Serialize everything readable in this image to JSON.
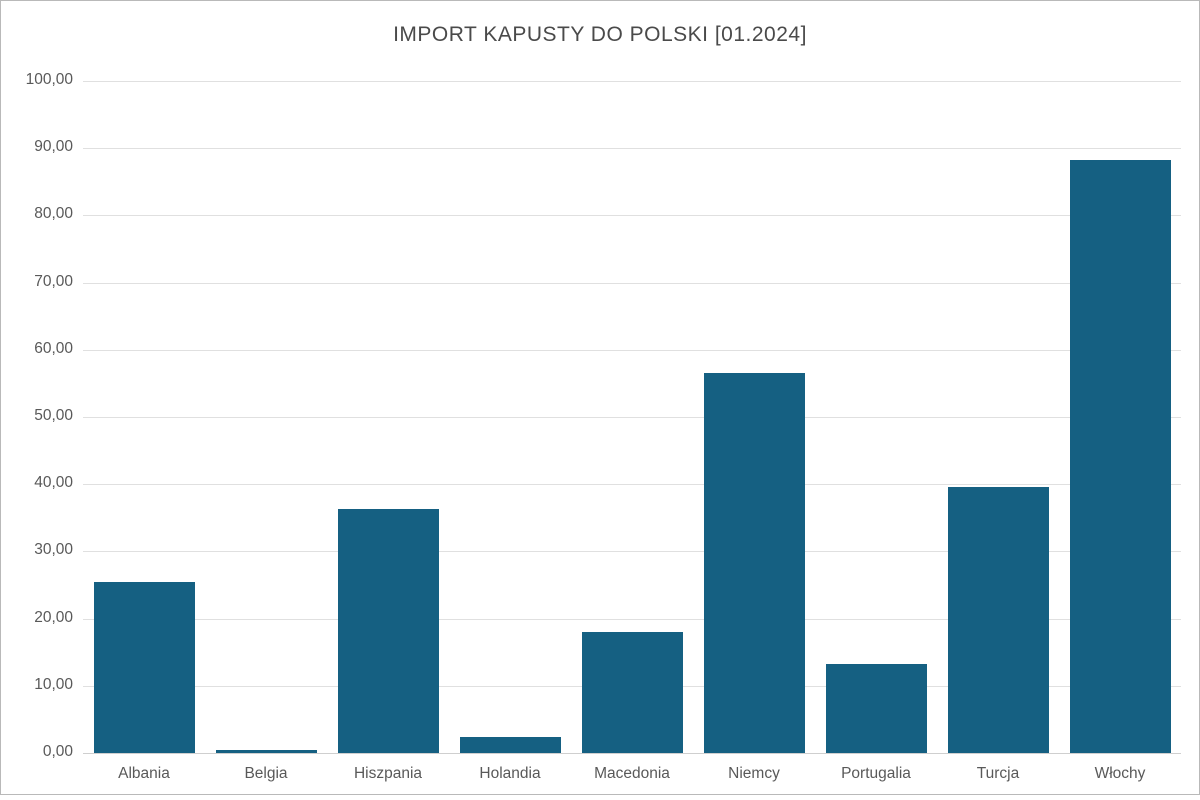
{
  "window": {
    "background": "#ffffff",
    "border_color": "#b9b9b9"
  },
  "chart_data": {
    "type": "bar",
    "title": "IMPORT KAPUSTY DO POLSKI [01.2024]",
    "categories": [
      "Albania",
      "Belgia",
      "Hiszpania",
      "Holandia",
      "Macedonia",
      "Niemcy",
      "Portugalia",
      "Turcja",
      "Włochy"
    ],
    "values": [
      25.5,
      0.5,
      36.3,
      2.4,
      18.0,
      56.5,
      13.3,
      39.6,
      88.3
    ],
    "xlabel": "",
    "ylabel": "",
    "ylim": [
      0,
      100
    ],
    "ytick_step": 10,
    "ytick_labels": [
      "0,00",
      "10,00",
      "20,00",
      "30,00",
      "40,00",
      "50,00",
      "60,00",
      "70,00",
      "80,00",
      "90,00",
      "100,00"
    ],
    "grid": true,
    "legend": false,
    "decimal_format": "comma",
    "colors": {
      "bar": "#156082",
      "gridline": "#e0e0e0",
      "axis_line": "#cfcfcf",
      "tick_label": "#595959",
      "title": "#4a4a4a"
    }
  }
}
